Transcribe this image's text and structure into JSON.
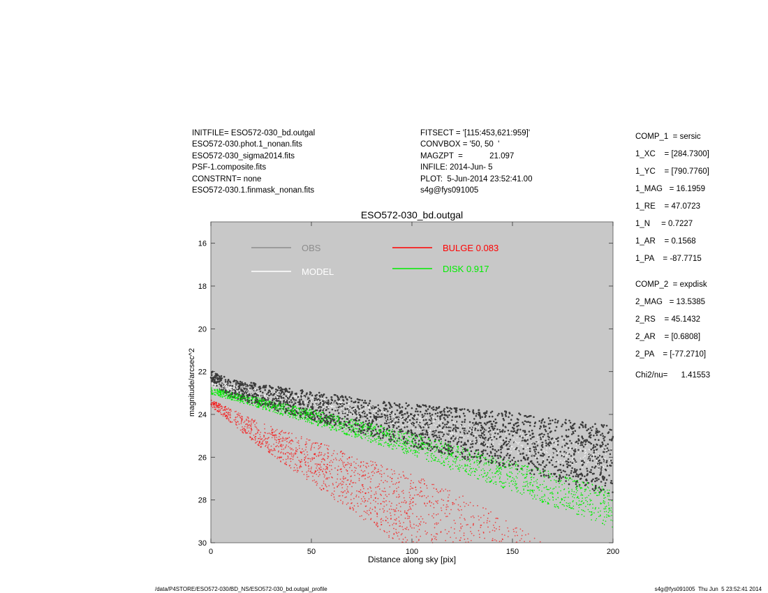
{
  "header_left": [
    "INITFILE= ESO572-030_bd.outgal",
    "ESO572-030.phot.1_nonan.fits",
    "ESO572-030_sigma2014.fits",
    "PSF-1.composite.fits",
    "CONSTRNT= none",
    "ESO572-030.1.finmask_nonan.fits"
  ],
  "header_mid": [
    "FITSECT = '[115:453,621:959]'",
    "CONVBOX = '50, 50  '",
    "MAGZPT  =            21.097",
    "INFILE: 2014-Jun- 5",
    "PLOT:  5-Jun-2014 23:52:41.00",
    "s4g@fys091005"
  ],
  "params": [
    "COMP_1  = sersic",
    "1_XC    = [284.7300]",
    "1_YC    = [790.7760]",
    "1_MAG   = 16.1959",
    "1_RE    = 47.0723",
    "1_N     = 0.7227",
    "1_AR    = 0.1568",
    "1_PA    = -87.7715",
    "COMP_2  = expdisk",
    "2_MAG   = 13.5385",
    "2_RS    = 45.1432",
    "2_AR    = [0.6808]",
    "2_PA    = [-77.2710]",
    "Chi2/nu=      1.41553"
  ],
  "footer_left": "/data/P4STORE/ESO572-030/BD_NS/ESO572-030_bd.outgal_profile",
  "footer_right": "s4g@fys091005  Thu Jun  5 23:52:41 2014",
  "chart_data": {
    "type": "scatter",
    "title": "ESO572-030_bd.outgal",
    "xlabel": "Distance along sky [pix]",
    "ylabel": "magnitude/arcsec^2",
    "xlim": [
      0,
      200
    ],
    "ylim": [
      15,
      30
    ],
    "y_inverted": true,
    "xticks": [
      0,
      50,
      100,
      150,
      200
    ],
    "yticks": [
      16,
      18,
      20,
      22,
      24,
      26,
      28,
      30
    ],
    "background": "#c8c8c8",
    "legend": [
      {
        "label": "OBS",
        "color": "#8c8c8c"
      },
      {
        "label": "MODEL",
        "color": "#ffffff"
      },
      {
        "label": "BULGE  0.083",
        "color": "#ff0000"
      },
      {
        "label": "DISK  0.917",
        "color": "#00ee00"
      }
    ],
    "series": [
      {
        "name": "OBS",
        "color": "#3a3a3a",
        "x": [
          0,
          10,
          25,
          50,
          75,
          100,
          125,
          150,
          175,
          200
        ],
        "y": [
          22.3,
          22.8,
          23.1,
          23.6,
          24.1,
          24.5,
          24.9,
          25.2,
          25.7,
          26.2
        ]
      },
      {
        "name": "MODEL",
        "color": "#ffffff",
        "x": [
          0,
          50,
          100,
          150,
          200
        ],
        "y": [
          22.6,
          23.4,
          24.3,
          25.3,
          26.2
        ]
      },
      {
        "name": "DISK",
        "color": "#00ee00",
        "x": [
          0,
          50,
          100,
          150,
          200
        ],
        "y": [
          22.9,
          24.1,
          25.4,
          26.9,
          28.4
        ]
      },
      {
        "name": "BULGE",
        "color": "#ff0000",
        "x": [
          0,
          25,
          50,
          75,
          100,
          125,
          150,
          165
        ],
        "y": [
          23.3,
          24.4,
          25.2,
          26.0,
          26.8,
          27.8,
          29.1,
          30.0
        ]
      }
    ]
  }
}
